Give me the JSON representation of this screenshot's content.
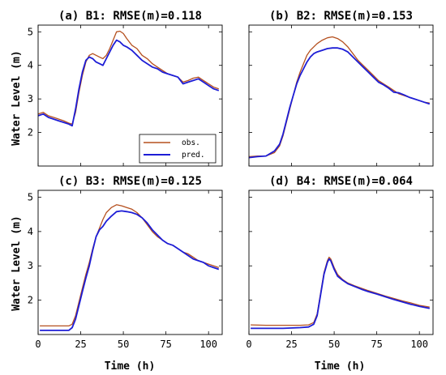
{
  "figure": {
    "ylabel": "Water Level (m)",
    "xlabel": "Time (h)"
  },
  "legend": {
    "obs_label": "obs.",
    "pred_label": "pred."
  },
  "colors": {
    "obs": "#b5501f",
    "pred": "#1d1dd6"
  },
  "chart_data": [
    {
      "type": "line",
      "title": "(a) B1: RMSE(m)=0.118",
      "xlim": [
        0,
        108
      ],
      "ylim": [
        1,
        5.2
      ],
      "xticks": [
        0,
        25,
        50,
        75,
        100
      ],
      "yticks": [
        2,
        3,
        4,
        5
      ],
      "show_xtick_labels": false,
      "show_ytick_labels": true,
      "show_ylabel": true,
      "show_xlabel": false,
      "legend": true,
      "legend_position": "center-right",
      "series": [
        {
          "name": "obs.",
          "x": [
            0,
            3,
            6,
            9,
            12,
            15,
            18,
            20,
            22,
            24,
            26,
            28,
            30,
            32,
            34,
            36,
            38,
            40,
            42,
            44,
            46,
            48,
            50,
            52,
            55,
            58,
            61,
            64,
            67,
            70,
            73,
            76,
            79,
            82,
            85,
            88,
            91,
            94,
            97,
            100,
            103,
            106
          ],
          "y": [
            2.55,
            2.6,
            2.5,
            2.45,
            2.4,
            2.35,
            2.28,
            2.25,
            2.6,
            3.2,
            3.7,
            4.1,
            4.3,
            4.35,
            4.3,
            4.25,
            4.2,
            4.3,
            4.5,
            4.75,
            5.0,
            5.02,
            4.95,
            4.8,
            4.6,
            4.5,
            4.3,
            4.2,
            4.05,
            3.95,
            3.85,
            3.75,
            3.7,
            3.65,
            3.5,
            3.55,
            3.62,
            3.65,
            3.55,
            3.45,
            3.35,
            3.3
          ]
        },
        {
          "name": "pred.",
          "x": [
            0,
            3,
            6,
            9,
            12,
            15,
            18,
            20,
            22,
            24,
            26,
            28,
            30,
            32,
            34,
            36,
            38,
            40,
            42,
            44,
            46,
            48,
            50,
            52,
            55,
            58,
            61,
            64,
            67,
            70,
            73,
            76,
            79,
            82,
            85,
            88,
            91,
            94,
            97,
            100,
            103,
            106
          ],
          "y": [
            2.5,
            2.55,
            2.45,
            2.4,
            2.35,
            2.3,
            2.25,
            2.2,
            2.7,
            3.3,
            3.8,
            4.15,
            4.25,
            4.2,
            4.1,
            4.05,
            4.0,
            4.2,
            4.4,
            4.6,
            4.75,
            4.7,
            4.6,
            4.55,
            4.45,
            4.3,
            4.15,
            4.05,
            3.95,
            3.9,
            3.8,
            3.75,
            3.7,
            3.65,
            3.45,
            3.5,
            3.55,
            3.6,
            3.5,
            3.4,
            3.3,
            3.25
          ]
        }
      ]
    },
    {
      "type": "line",
      "title": "(b) B2: RMSE(m)=0.153",
      "xlim": [
        0,
        108
      ],
      "ylim": [
        1,
        5.2
      ],
      "xticks": [
        0,
        25,
        50,
        75,
        100
      ],
      "yticks": [
        2,
        3,
        4,
        5
      ],
      "show_xtick_labels": false,
      "show_ytick_labels": false,
      "show_ylabel": false,
      "show_xlabel": false,
      "legend": false,
      "series": [
        {
          "name": "obs.",
          "x": [
            0,
            5,
            10,
            15,
            18,
            20,
            22,
            24,
            26,
            28,
            30,
            32,
            34,
            36,
            38,
            40,
            43,
            46,
            49,
            52,
            55,
            58,
            61,
            64,
            67,
            70,
            73,
            76,
            79,
            82,
            85,
            88,
            91,
            94,
            97,
            100,
            103,
            106
          ],
          "y": [
            1.28,
            1.3,
            1.3,
            1.4,
            1.6,
            1.9,
            2.3,
            2.7,
            3.1,
            3.5,
            3.8,
            4.05,
            4.3,
            4.45,
            4.55,
            4.65,
            4.75,
            4.82,
            4.85,
            4.8,
            4.7,
            4.55,
            4.35,
            4.15,
            4.0,
            3.85,
            3.7,
            3.55,
            3.45,
            3.35,
            3.25,
            3.15,
            3.1,
            3.05,
            3.0,
            2.95,
            2.9,
            2.88
          ]
        },
        {
          "name": "pred.",
          "x": [
            0,
            5,
            10,
            15,
            18,
            20,
            22,
            24,
            26,
            28,
            30,
            32,
            34,
            36,
            38,
            40,
            43,
            46,
            49,
            52,
            55,
            58,
            61,
            64,
            67,
            70,
            73,
            76,
            79,
            82,
            85,
            88,
            91,
            94,
            97,
            100,
            103,
            106
          ],
          "y": [
            1.25,
            1.28,
            1.3,
            1.45,
            1.65,
            1.95,
            2.35,
            2.75,
            3.1,
            3.45,
            3.7,
            3.9,
            4.1,
            4.25,
            4.35,
            4.4,
            4.45,
            4.5,
            4.52,
            4.52,
            4.48,
            4.4,
            4.25,
            4.1,
            3.95,
            3.8,
            3.65,
            3.5,
            3.42,
            3.32,
            3.2,
            3.18,
            3.12,
            3.05,
            3.0,
            2.95,
            2.9,
            2.85
          ]
        }
      ]
    },
    {
      "type": "line",
      "title": "(c) B3: RMSE(m)=0.125",
      "xlim": [
        0,
        108
      ],
      "ylim": [
        1,
        5.2
      ],
      "xticks": [
        0,
        25,
        50,
        75,
        100
      ],
      "yticks": [
        2,
        3,
        4,
        5
      ],
      "show_xtick_labels": true,
      "show_ytick_labels": true,
      "show_ylabel": true,
      "show_xlabel": true,
      "legend": false,
      "series": [
        {
          "name": "obs.",
          "x": [
            1,
            5,
            10,
            15,
            18,
            20,
            22,
            24,
            26,
            28,
            30,
            32,
            34,
            36,
            38,
            40,
            43,
            46,
            49,
            52,
            55,
            58,
            61,
            64,
            67,
            70,
            73,
            76,
            79,
            82,
            85,
            88,
            91,
            94,
            97,
            100,
            103,
            106
          ],
          "y": [
            1.25,
            1.25,
            1.25,
            1.25,
            1.25,
            1.3,
            1.55,
            1.95,
            2.35,
            2.75,
            3.1,
            3.5,
            3.85,
            4.1,
            4.35,
            4.55,
            4.7,
            4.78,
            4.75,
            4.7,
            4.65,
            4.55,
            4.4,
            4.2,
            4.0,
            3.85,
            3.75,
            3.65,
            3.6,
            3.5,
            3.4,
            3.35,
            3.25,
            3.15,
            3.1,
            3.05,
            3.0,
            2.95
          ]
        },
        {
          "name": "pred.",
          "x": [
            1,
            5,
            10,
            15,
            18,
            20,
            22,
            24,
            26,
            28,
            30,
            32,
            34,
            36,
            38,
            40,
            43,
            46,
            49,
            52,
            55,
            58,
            61,
            64,
            67,
            70,
            73,
            76,
            79,
            82,
            85,
            88,
            91,
            94,
            97,
            100,
            103,
            106
          ],
          "y": [
            1.12,
            1.12,
            1.12,
            1.12,
            1.12,
            1.2,
            1.45,
            1.85,
            2.25,
            2.65,
            3.0,
            3.45,
            3.85,
            4.05,
            4.15,
            4.3,
            4.45,
            4.58,
            4.6,
            4.58,
            4.55,
            4.5,
            4.4,
            4.25,
            4.05,
            3.9,
            3.75,
            3.65,
            3.6,
            3.5,
            3.4,
            3.3,
            3.2,
            3.15,
            3.1,
            3.0,
            2.95,
            2.9
          ]
        }
      ]
    },
    {
      "type": "line",
      "title": "(d) B4: RMSE(m)=0.064",
      "xlim": [
        0,
        108
      ],
      "ylim": [
        1,
        5.2
      ],
      "xticks": [
        0,
        25,
        50,
        75,
        100
      ],
      "yticks": [
        2,
        3,
        4,
        5
      ],
      "show_xtick_labels": true,
      "show_ytick_labels": false,
      "show_ylabel": false,
      "show_xlabel": true,
      "legend": false,
      "series": [
        {
          "name": "obs.",
          "x": [
            1,
            10,
            20,
            30,
            35,
            38,
            40,
            42,
            44,
            46,
            47,
            48,
            50,
            52,
            55,
            58,
            62,
            66,
            70,
            75,
            80,
            85,
            90,
            95,
            100,
            106
          ],
          "y": [
            1.28,
            1.27,
            1.27,
            1.27,
            1.28,
            1.35,
            1.6,
            2.2,
            2.8,
            3.15,
            3.25,
            3.2,
            2.95,
            2.75,
            2.6,
            2.5,
            2.42,
            2.35,
            2.28,
            2.2,
            2.12,
            2.05,
            1.98,
            1.92,
            1.85,
            1.8
          ]
        },
        {
          "name": "pred.",
          "x": [
            1,
            10,
            20,
            30,
            35,
            38,
            40,
            42,
            44,
            46,
            47,
            48,
            50,
            52,
            55,
            58,
            62,
            66,
            70,
            75,
            80,
            85,
            90,
            95,
            100,
            106
          ],
          "y": [
            1.18,
            1.18,
            1.18,
            1.2,
            1.22,
            1.3,
            1.55,
            2.15,
            2.75,
            3.1,
            3.2,
            3.15,
            2.9,
            2.7,
            2.58,
            2.48,
            2.4,
            2.32,
            2.25,
            2.18,
            2.1,
            2.02,
            1.95,
            1.88,
            1.82,
            1.76
          ]
        }
      ]
    }
  ]
}
